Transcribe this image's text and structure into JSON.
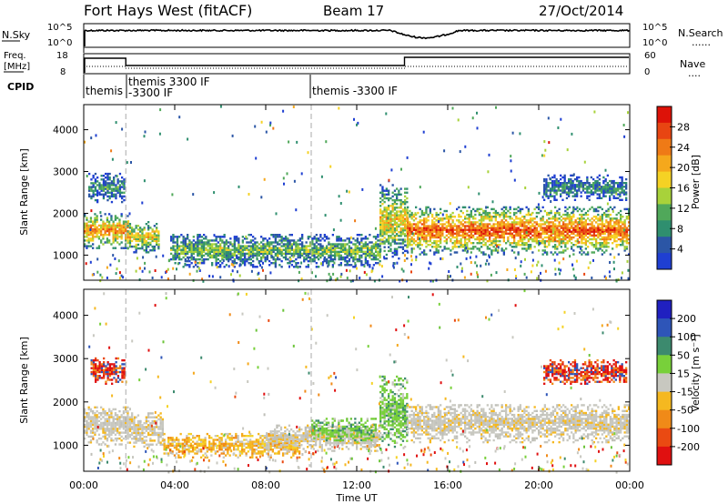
{
  "header": {
    "title": "Fort Hays West (fitACF)",
    "beam": "Beam 17",
    "date": "27/Oct/2014"
  },
  "sky_panel": {
    "left_label": "N.Sky",
    "left_ticks": [
      "10^5",
      "10^0"
    ],
    "right_ticks": [
      "10^5",
      "10^0"
    ],
    "right_label": "N.Search",
    "right_legend": "......"
  },
  "freq_panel": {
    "left_label_1": "Freq.",
    "left_label_2": "[MHz]",
    "left_ticks": [
      "18",
      "8"
    ],
    "right_ticks": [
      "60",
      "0"
    ],
    "right_label": "Nave",
    "right_legend": "...."
  },
  "cpid": {
    "label": "CPID",
    "segments": [
      {
        "text": "themis"
      },
      {
        "text": "themis 3300 IF"
      },
      {
        "text": "-3300 IF"
      },
      {
        "text": "themis -3300 IF"
      }
    ]
  },
  "colors": {
    "power": [
      "#1f3fd2",
      "#2b56a6",
      "#2f8f6f",
      "#50a85a",
      "#a8d23a",
      "#f5d224",
      "#f5a81c",
      "#ef7a16",
      "#e84512",
      "#dd1208"
    ],
    "velocity": [
      "#2020c0",
      "#2e55b8",
      "#3c8a6e",
      "#78d03a",
      "#c8c8c0",
      "#f5b820",
      "#f08a18",
      "#ea4a12",
      "#e01010"
    ]
  },
  "chart_data": [
    {
      "type": "heatmap",
      "name": "power",
      "ylabel": "Slant Range [km]",
      "ylim": [
        400,
        4600
      ],
      "yticks": [
        "1000",
        "2000",
        "3000",
        "4000"
      ],
      "colorbar_label": "Power [dB]",
      "colorbar_ticks": [
        "4",
        "8",
        "12",
        "16",
        "20",
        "24",
        "28"
      ],
      "bands": [
        {
          "t": [
            0.0,
            1.9
          ],
          "low": 1150,
          "high": 2000,
          "level": 0.75
        },
        {
          "t": [
            0.2,
            1.8
          ],
          "low": 2250,
          "high": 2950,
          "level": 0.25
        },
        {
          "t": [
            1.9,
            3.3
          ],
          "low": 1050,
          "high": 1800,
          "level": 0.6
        },
        {
          "t": [
            3.8,
            13.0
          ],
          "low": 700,
          "high": 1500,
          "level": 0.4
        },
        {
          "t": [
            13.0,
            14.2
          ],
          "low": 900,
          "high": 2700,
          "level": 0.6
        },
        {
          "t": [
            14.2,
            24.0
          ],
          "low": 1000,
          "high": 2150,
          "level": 0.85
        },
        {
          "t": [
            20.2,
            23.8
          ],
          "low": 2300,
          "high": 2900,
          "level": 0.25
        }
      ]
    },
    {
      "type": "heatmap",
      "name": "velocity",
      "ylabel": "Slant Range [km]",
      "ylim": [
        400,
        4600
      ],
      "yticks": [
        "1000",
        "2000",
        "3000",
        "4000"
      ],
      "colorbar_label": "Velocity [m s⁻¹]",
      "colorbar_ticks": [
        "200",
        "100",
        "50",
        "15",
        "-15",
        "-50",
        "-100",
        "-200"
      ],
      "bands": [
        {
          "t": [
            0.0,
            1.9
          ],
          "low": 1000,
          "high": 1900,
          "kind": "gray"
        },
        {
          "t": [
            0.3,
            1.8
          ],
          "low": 2400,
          "high": 3000,
          "kind": "red"
        },
        {
          "t": [
            1.9,
            3.5
          ],
          "low": 950,
          "high": 1750,
          "kind": "gray"
        },
        {
          "t": [
            3.5,
            9.5
          ],
          "low": 700,
          "high": 1250,
          "kind": "orange"
        },
        {
          "t": [
            8.0,
            13.0
          ],
          "low": 850,
          "high": 1450,
          "kind": "gray"
        },
        {
          "t": [
            10.0,
            12.8
          ],
          "low": 1050,
          "high": 1600,
          "kind": "green"
        },
        {
          "t": [
            13.0,
            14.2
          ],
          "low": 900,
          "high": 2600,
          "kind": "green"
        },
        {
          "t": [
            14.2,
            24.0
          ],
          "low": 1050,
          "high": 1950,
          "kind": "gray"
        },
        {
          "t": [
            20.2,
            23.8
          ],
          "low": 2400,
          "high": 2950,
          "kind": "red"
        }
      ]
    }
  ],
  "x_axis": {
    "label": "Time UT",
    "range": [
      0,
      24
    ],
    "ticks": [
      "00:00",
      "04:00",
      "08:00",
      "12:00",
      "16:00",
      "20:00",
      "00:00"
    ],
    "cpid_change_times": [
      1.85,
      10.0
    ]
  }
}
